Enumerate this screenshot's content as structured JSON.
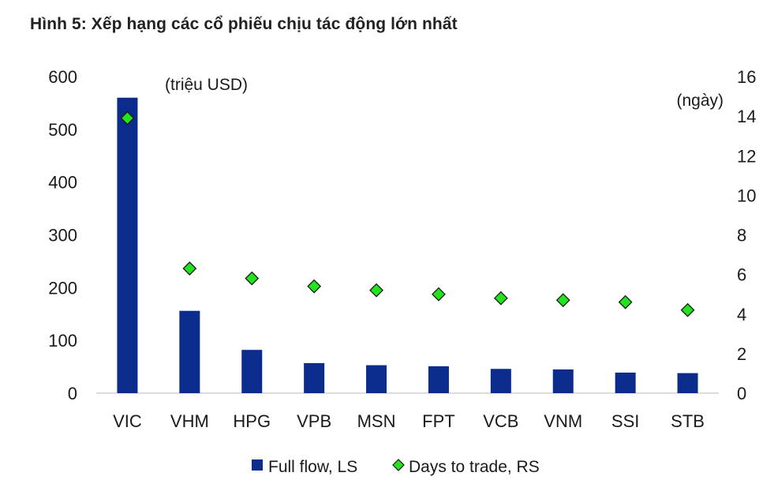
{
  "chart_data": {
    "type": "bar",
    "title": "Hình 5: Xếp hạng các cổ phiếu chịu tác động lớn nhất",
    "categories": [
      "VIC",
      "VHM",
      "HPG",
      "VPB",
      "MSN",
      "FPT",
      "VCB",
      "VNM",
      "SSI",
      "STB"
    ],
    "series": [
      {
        "name": "Full flow, LS",
        "kind": "bar",
        "axis": "left",
        "color": "#0B2C8C",
        "values": [
          560,
          156,
          82,
          57,
          53,
          51,
          46,
          45,
          39,
          38
        ]
      },
      {
        "name": "Days to trade, RS",
        "kind": "marker",
        "marker": "diamond",
        "axis": "right",
        "color": "#22E41C",
        "values": [
          13.9,
          6.3,
          5.8,
          5.4,
          5.2,
          5.0,
          4.8,
          4.7,
          4.6,
          4.2
        ]
      }
    ],
    "y_left": {
      "unit_label": "(triệu USD)",
      "lim": [
        0,
        600
      ],
      "ticks": [
        "0",
        "100",
        "200",
        "300",
        "400",
        "500",
        "600"
      ]
    },
    "y_right": {
      "unit_label": "(ngày)",
      "lim": [
        0,
        16
      ],
      "ticks": [
        "0",
        "2",
        "4",
        "6",
        "8",
        "10",
        "12",
        "14",
        "16"
      ]
    },
    "grid": false,
    "legend_position": "bottom"
  }
}
